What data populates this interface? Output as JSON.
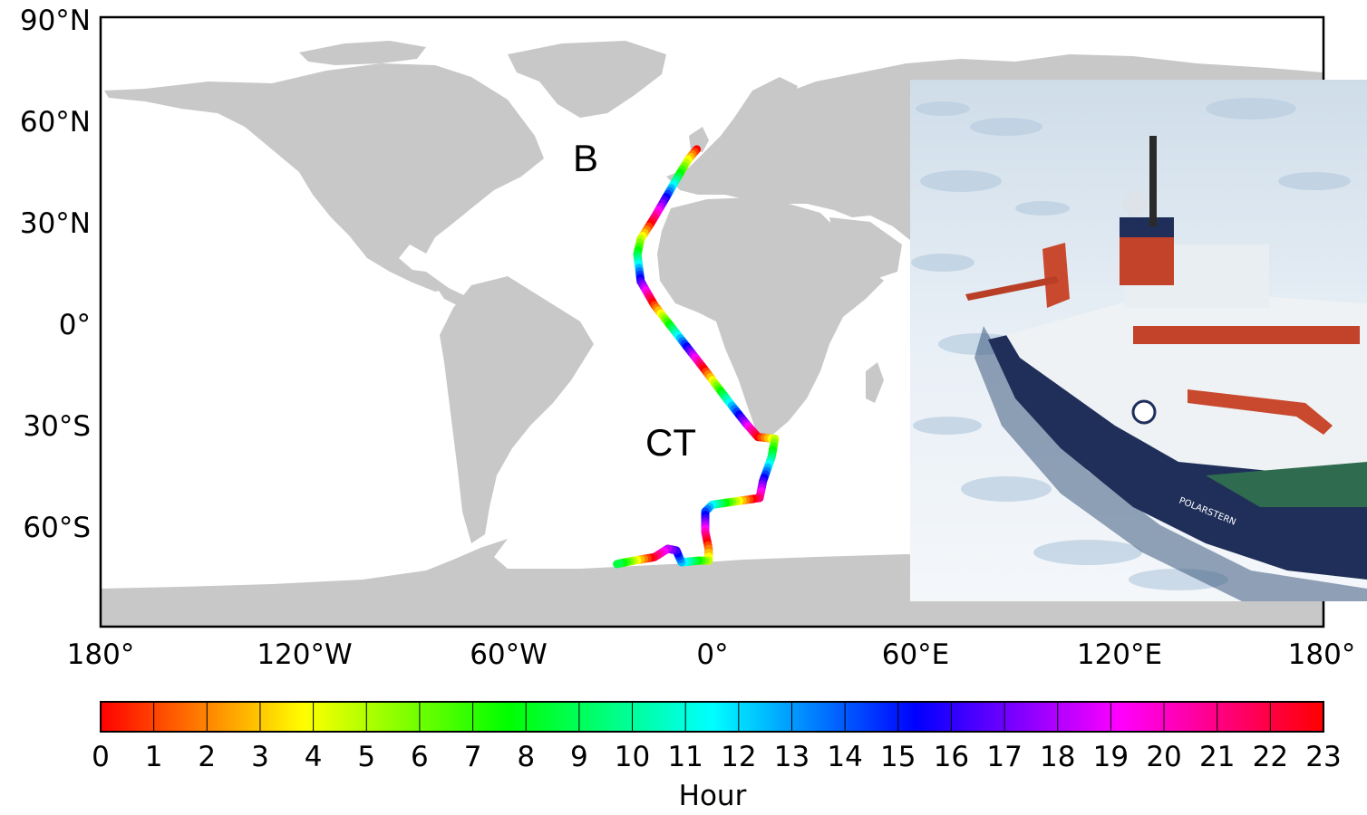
{
  "map": {
    "lat_ticks": [
      "90°N",
      "60°N",
      "30°N",
      "0°",
      "30°S",
      "60°S"
    ],
    "lon_ticks": [
      "180°",
      "120°W",
      "60°W",
      "0°",
      "60°E",
      "120°E",
      "180°"
    ],
    "lon_range": [
      -180,
      180
    ],
    "lat_range": [
      -90,
      90
    ],
    "land_color": "#c8c8c8",
    "ocean_color": "#ffffff",
    "labels": [
      {
        "text": "B"
      },
      {
        "text": "CT"
      }
    ],
    "track": [
      [
        -4.5,
        51.0
      ],
      [
        -7.0,
        48.0
      ],
      [
        -10.0,
        43.0
      ],
      [
        -14.0,
        36.0
      ],
      [
        -17.5,
        30.0
      ],
      [
        -21.0,
        24.5
      ],
      [
        -22.0,
        20.0
      ],
      [
        -21.0,
        12.0
      ],
      [
        -17.0,
        5.0
      ],
      [
        -10.0,
        -4.0
      ],
      [
        -3.0,
        -13.0
      ],
      [
        4.5,
        -23.0
      ],
      [
        10.0,
        -30.0
      ],
      [
        13.5,
        -34.0
      ],
      [
        18.5,
        -34.5
      ],
      [
        17.5,
        -40.0
      ],
      [
        15.0,
        -47.0
      ],
      [
        14.0,
        -52.0
      ],
      [
        7.0,
        -53.0
      ],
      [
        0.0,
        -54.0
      ],
      [
        -2.0,
        -56.0
      ],
      [
        -2.0,
        -62.0
      ],
      [
        -1.0,
        -67.0
      ],
      [
        -1.0,
        -70.5
      ],
      [
        -4.0,
        -70.5
      ],
      [
        -9.0,
        -71.0
      ],
      [
        -10.5,
        -67.5
      ],
      [
        -13.0,
        -67.0
      ],
      [
        -17.0,
        -69.5
      ],
      [
        -23.0,
        -70.5
      ],
      [
        -28.0,
        -71.5
      ]
    ]
  },
  "colorbar": {
    "label": "Hour",
    "ticks": [
      "0",
      "1",
      "2",
      "3",
      "4",
      "5",
      "6",
      "7",
      "8",
      "9",
      "10",
      "11",
      "12",
      "13",
      "14",
      "15",
      "16",
      "17",
      "18",
      "19",
      "20",
      "21",
      "22",
      "23"
    ],
    "range": [
      0,
      23
    ],
    "colormap": "hsv"
  },
  "inset_photo": {
    "ship_name": "POLARSTERN",
    "colors": {
      "ice": "#dfe9f2",
      "water": "#2f4f73",
      "hull": "#1f2f5a",
      "red": "#c2432a"
    }
  }
}
